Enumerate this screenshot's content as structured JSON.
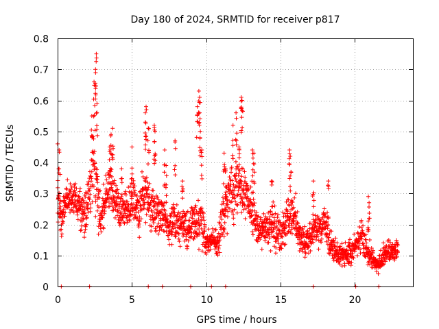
{
  "chart_data": {
    "type": "scatter",
    "title": "Day 180 of 2024, SRMTID for receiver p817",
    "xlabel": "GPS time / hours",
    "ylabel": "SRMTID / TECUs",
    "xlim": [
      0,
      23.9
    ],
    "ylim": [
      0,
      0.8
    ],
    "grid": true,
    "marker": "+",
    "color": "#ff0000",
    "x_ticks": [
      0,
      5,
      10,
      15,
      20
    ],
    "y_ticks": [
      0,
      0.1,
      0.2,
      0.3,
      0.4,
      0.5,
      0.6,
      0.7,
      0.8
    ],
    "x_tick_labels": [
      "0",
      "5",
      "10",
      "15",
      "20"
    ],
    "y_tick_labels": [
      "0",
      "0.1",
      "0.2",
      "0.3",
      "0.4",
      "0.5",
      "0.6",
      "0.7",
      "0.8"
    ],
    "series": [
      {
        "name": "SRMTID",
        "envelope": [
          [
            0.0,
            0.27,
            0.09
          ],
          [
            0.3,
            0.22,
            0.06
          ],
          [
            0.6,
            0.27,
            0.07
          ],
          [
            1.0,
            0.29,
            0.06
          ],
          [
            1.4,
            0.27,
            0.07
          ],
          [
            1.8,
            0.22,
            0.07
          ],
          [
            2.2,
            0.31,
            0.08
          ],
          [
            2.4,
            0.42,
            0.13
          ],
          [
            2.6,
            0.34,
            0.12
          ],
          [
            2.9,
            0.21,
            0.07
          ],
          [
            3.3,
            0.3,
            0.08
          ],
          [
            3.6,
            0.33,
            0.09
          ],
          [
            4.0,
            0.26,
            0.07
          ],
          [
            4.4,
            0.24,
            0.07
          ],
          [
            4.8,
            0.25,
            0.07
          ],
          [
            5.1,
            0.27,
            0.08
          ],
          [
            5.5,
            0.24,
            0.08
          ],
          [
            5.9,
            0.31,
            0.09
          ],
          [
            6.3,
            0.25,
            0.08
          ],
          [
            6.7,
            0.22,
            0.07
          ],
          [
            7.0,
            0.24,
            0.07
          ],
          [
            7.4,
            0.19,
            0.06
          ],
          [
            7.8,
            0.21,
            0.07
          ],
          [
            8.2,
            0.21,
            0.07
          ],
          [
            8.6,
            0.2,
            0.07
          ],
          [
            9.0,
            0.18,
            0.07
          ],
          [
            9.3,
            0.21,
            0.09
          ],
          [
            9.6,
            0.22,
            0.09
          ],
          [
            10.0,
            0.14,
            0.04
          ],
          [
            10.4,
            0.15,
            0.04
          ],
          [
            10.8,
            0.14,
            0.05
          ],
          [
            11.2,
            0.24,
            0.08
          ],
          [
            11.6,
            0.3,
            0.09
          ],
          [
            12.0,
            0.33,
            0.1
          ],
          [
            12.4,
            0.31,
            0.09
          ],
          [
            12.8,
            0.28,
            0.08
          ],
          [
            13.2,
            0.22,
            0.07
          ],
          [
            13.6,
            0.18,
            0.06
          ],
          [
            14.0,
            0.19,
            0.06
          ],
          [
            14.4,
            0.2,
            0.07
          ],
          [
            14.8,
            0.18,
            0.06
          ],
          [
            15.2,
            0.19,
            0.06
          ],
          [
            15.6,
            0.24,
            0.08
          ],
          [
            16.0,
            0.22,
            0.07
          ],
          [
            16.4,
            0.15,
            0.05
          ],
          [
            16.8,
            0.15,
            0.05
          ],
          [
            17.2,
            0.19,
            0.06
          ],
          [
            17.6,
            0.18,
            0.06
          ],
          [
            18.0,
            0.21,
            0.06
          ],
          [
            18.4,
            0.13,
            0.05
          ],
          [
            18.8,
            0.11,
            0.04
          ],
          [
            19.2,
            0.1,
            0.04
          ],
          [
            19.6,
            0.11,
            0.04
          ],
          [
            20.0,
            0.13,
            0.05
          ],
          [
            20.4,
            0.17,
            0.06
          ],
          [
            20.8,
            0.12,
            0.04
          ],
          [
            21.2,
            0.08,
            0.04
          ],
          [
            21.5,
            0.07,
            0.03
          ],
          [
            21.8,
            0.09,
            0.04
          ],
          [
            22.2,
            0.11,
            0.04
          ],
          [
            22.6,
            0.11,
            0.04
          ],
          [
            22.9,
            0.12,
            0.04
          ]
        ],
        "spikes": [
          [
            0.0,
            0.46
          ],
          [
            0.1,
            0.44
          ],
          [
            2.3,
            0.55
          ],
          [
            2.45,
            0.66
          ],
          [
            2.6,
            0.75
          ],
          [
            2.55,
            0.7
          ],
          [
            2.65,
            0.59
          ],
          [
            3.5,
            0.45
          ],
          [
            3.6,
            0.49
          ],
          [
            3.7,
            0.51
          ],
          [
            4.3,
            0.38
          ],
          [
            5.0,
            0.45
          ],
          [
            5.9,
            0.56
          ],
          [
            5.95,
            0.58
          ],
          [
            6.1,
            0.51
          ],
          [
            6.5,
            0.52
          ],
          [
            6.55,
            0.5
          ],
          [
            7.2,
            0.44
          ],
          [
            7.3,
            0.39
          ],
          [
            7.9,
            0.47
          ],
          [
            8.4,
            0.34
          ],
          [
            9.4,
            0.58
          ],
          [
            9.5,
            0.63
          ],
          [
            9.55,
            0.61
          ],
          [
            9.6,
            0.5
          ],
          [
            9.7,
            0.44
          ],
          [
            11.2,
            0.43
          ],
          [
            11.3,
            0.38
          ],
          [
            11.8,
            0.52
          ],
          [
            12.0,
            0.56
          ],
          [
            12.2,
            0.45
          ],
          [
            12.35,
            0.61
          ],
          [
            12.4,
            0.6
          ],
          [
            13.1,
            0.44
          ],
          [
            13.2,
            0.43
          ],
          [
            14.4,
            0.34
          ],
          [
            15.6,
            0.44
          ],
          [
            15.65,
            0.42
          ],
          [
            17.2,
            0.34
          ],
          [
            18.2,
            0.34
          ],
          [
            20.9,
            0.29
          ],
          [
            20.95,
            0.27
          ]
        ],
        "bottom_markers": [
          0.25,
          2.15,
          6.1,
          7.05,
          8.95,
          10.35,
          11.3,
          17.2,
          20.05,
          21.6
        ]
      }
    ]
  }
}
